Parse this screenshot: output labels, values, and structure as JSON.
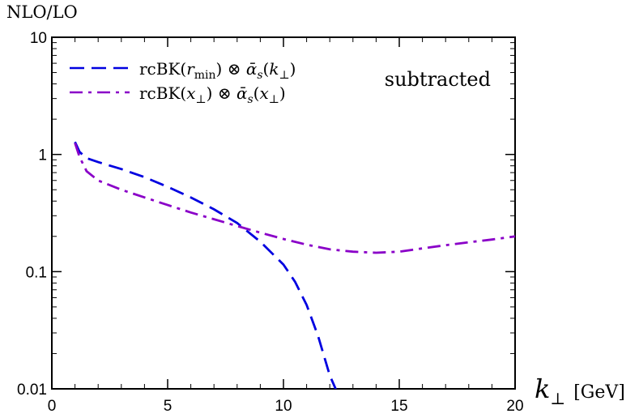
{
  "chart_data": {
    "type": "line",
    "ylabel": "NLO/LO",
    "xlabel_symbol": "k",
    "xlabel_subscript": "⊥",
    "xlabel_unit": "[GeV]",
    "annotation": "subtracted",
    "xlim": [
      0,
      20
    ],
    "ylim": [
      0.01,
      10
    ],
    "y_scale": "log",
    "x_ticks": [
      0,
      5,
      10,
      15,
      20
    ],
    "x_tick_labels": [
      "0",
      "5",
      "10",
      "15",
      "20"
    ],
    "y_ticks": [
      0.01,
      0.1,
      1,
      10
    ],
    "y_tick_labels": [
      "0.01",
      "0.1",
      "1",
      "10"
    ],
    "grid": false,
    "legend_position": "top-left",
    "series": [
      {
        "name": "rcBK(r_min) ⊗ ᾱ_s(k_⊥)",
        "legend_parts": [
          "rcBK(",
          "r",
          "min",
          ") ⊗ ",
          "ᾱ",
          "s",
          "(",
          "k",
          "⊥",
          ")"
        ],
        "color": "#0000e0",
        "dash": "dashed",
        "x": [
          1.0,
          1.2,
          1.5,
          2,
          3,
          4,
          5,
          6,
          7,
          8,
          9,
          10,
          10.5,
          11,
          11.5,
          12,
          12.3
        ],
        "y": [
          1.28,
          1.05,
          0.93,
          0.86,
          0.75,
          0.64,
          0.53,
          0.43,
          0.34,
          0.26,
          0.18,
          0.115,
          0.082,
          0.052,
          0.028,
          0.013,
          0.0095
        ]
      },
      {
        "name": "rcBK(x_⊥) ⊗ ᾱ_s(x_⊥)",
        "legend_parts": [
          "rcBK(",
          "x",
          "⊥",
          ") ⊗ ",
          "ᾱ",
          "s",
          "(",
          "x",
          "⊥",
          ")"
        ],
        "color": "#8a00c8",
        "dash": "dashdot",
        "x": [
          1.0,
          1.2,
          1.5,
          2,
          3,
          4,
          5,
          6,
          7,
          8,
          9,
          10,
          11,
          12,
          13,
          14,
          15,
          16,
          17,
          18,
          19,
          20
        ],
        "y": [
          1.25,
          0.95,
          0.72,
          0.6,
          0.5,
          0.43,
          0.37,
          0.32,
          0.28,
          0.245,
          0.215,
          0.19,
          0.17,
          0.155,
          0.148,
          0.145,
          0.148,
          0.158,
          0.168,
          0.178,
          0.188,
          0.2
        ]
      }
    ]
  }
}
